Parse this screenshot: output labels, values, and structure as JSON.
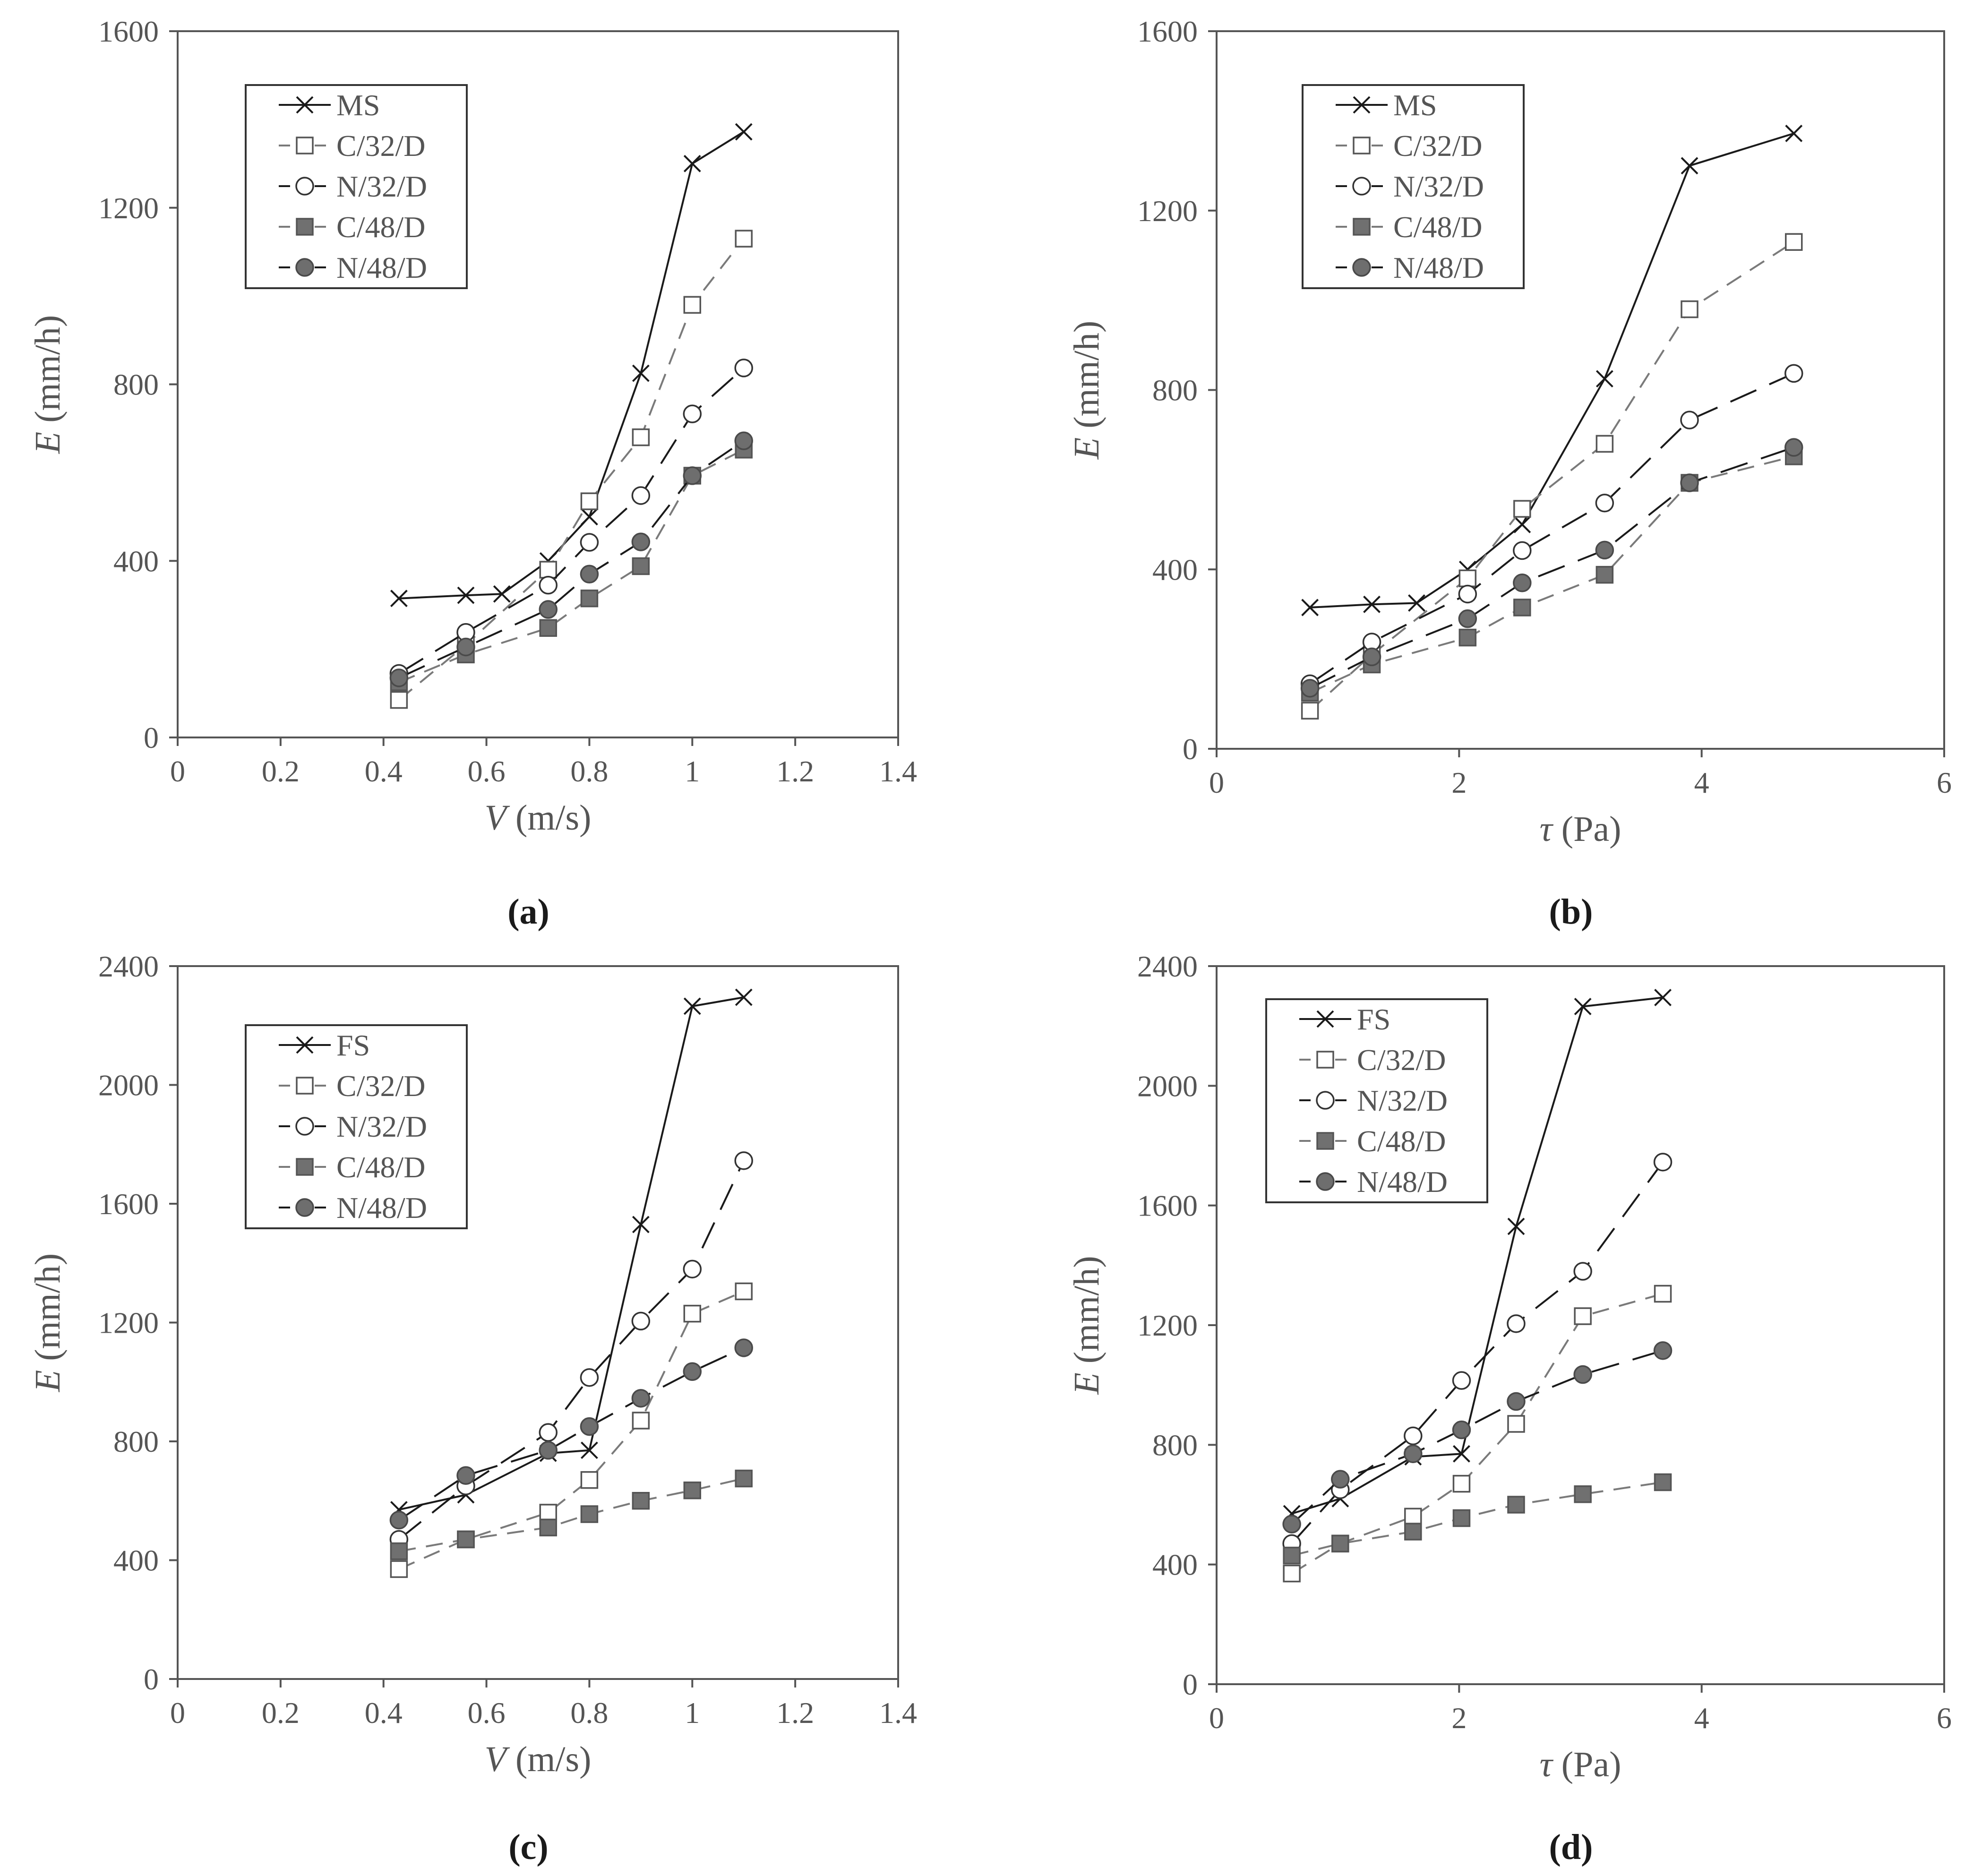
{
  "figure": {
    "colors": {
      "black": "#1a1a1a",
      "gray": "#7a7a7a",
      "axis": "#555555",
      "label": "#555555"
    },
    "panels": [
      "a",
      "b",
      "c",
      "d"
    ]
  },
  "chart_data": [
    {
      "id": "a",
      "type": "line",
      "panel_label": "(a)",
      "xlabel_sym": "V",
      "xlabel_unit": " (m/s)",
      "ylabel_sym": "E",
      "ylabel_unit": " (mm/h)",
      "xlim": [
        0,
        1.4
      ],
      "ylim": [
        0,
        1600
      ],
      "xticks": [
        0,
        0.2,
        0.4,
        0.6,
        0.8,
        1,
        1.2,
        1.4
      ],
      "xtick_labels": [
        "0",
        "0.2",
        "0.4",
        "0.6",
        "0.8",
        "1",
        "1.2",
        "1.4"
      ],
      "yticks": [
        0,
        400,
        800,
        1200,
        1600
      ],
      "ytick_labels": [
        "0",
        "400",
        "800",
        "1200",
        "1600"
      ],
      "legend_position": "top-left",
      "series": [
        {
          "name": "MS",
          "marker": "x",
          "style": "solid",
          "color": "#1a1a1a",
          "x": [
            0.43,
            0.56,
            0.63,
            0.72,
            0.8,
            0.9,
            1.0,
            1.1
          ],
          "y": [
            315,
            322,
            325,
            400,
            500,
            825,
            1300,
            1372
          ]
        },
        {
          "name": "C/32/D",
          "marker": "square-open",
          "style": "dashed",
          "color": "#7a7a7a",
          "x": [
            0.43,
            0.56,
            0.72,
            0.8,
            0.9,
            1.0,
            1.1
          ],
          "y": [
            85,
            210,
            380,
            535,
            680,
            980,
            1130
          ]
        },
        {
          "name": "N/32/D",
          "marker": "circle-open",
          "style": "longdash",
          "color": "#1a1a1a",
          "x": [
            0.43,
            0.56,
            0.72,
            0.8,
            0.9,
            1.0,
            1.1
          ],
          "y": [
            145,
            238,
            345,
            442,
            548,
            733,
            837
          ]
        },
        {
          "name": "C/48/D",
          "marker": "square-filled",
          "style": "dashed",
          "color": "#7a7a7a",
          "x": [
            0.43,
            0.56,
            0.72,
            0.8,
            0.9,
            1.0,
            1.1
          ],
          "y": [
            125,
            188,
            248,
            315,
            388,
            593,
            652
          ]
        },
        {
          "name": "N/48/D",
          "marker": "circle-filled",
          "style": "longdash",
          "color": "#1a1a1a",
          "x": [
            0.43,
            0.56,
            0.72,
            0.8,
            0.9,
            1.0,
            1.1
          ],
          "y": [
            135,
            205,
            290,
            370,
            443,
            593,
            672
          ]
        }
      ]
    },
    {
      "id": "b",
      "type": "line",
      "panel_label": "(b)",
      "xlabel_sym": "τ",
      "xlabel_unit": " (Pa)",
      "ylabel_sym": "E",
      "ylabel_unit": " (mm/h)",
      "xlim": [
        0,
        6
      ],
      "ylim": [
        0,
        1600
      ],
      "xticks": [
        0,
        2,
        4,
        6
      ],
      "xtick_labels": [
        "0",
        "2",
        "4",
        "6"
      ],
      "yticks": [
        0,
        400,
        800,
        1200,
        1600
      ],
      "ytick_labels": [
        "0",
        "400",
        "800",
        "1200",
        "1600"
      ],
      "legend_position": "top-left",
      "series": [
        {
          "name": "MS",
          "marker": "x",
          "style": "solid",
          "color": "#1a1a1a",
          "x": [
            0.77,
            1.28,
            1.65,
            2.07,
            2.52,
            3.2,
            3.9,
            4.76
          ],
          "y": [
            315,
            322,
            325,
            400,
            500,
            825,
            1300,
            1372
          ]
        },
        {
          "name": "C/32/D",
          "marker": "square-open",
          "style": "dashed",
          "color": "#7a7a7a",
          "x": [
            0.77,
            1.28,
            2.07,
            2.52,
            3.2,
            3.9,
            4.76
          ],
          "y": [
            85,
            210,
            380,
            535,
            680,
            980,
            1130
          ]
        },
        {
          "name": "N/32/D",
          "marker": "circle-open",
          "style": "longdash",
          "color": "#1a1a1a",
          "x": [
            0.77,
            1.28,
            2.07,
            2.52,
            3.2,
            3.9,
            4.76
          ],
          "y": [
            145,
            238,
            345,
            442,
            548,
            733,
            837
          ]
        },
        {
          "name": "C/48/D",
          "marker": "square-filled",
          "style": "dashed",
          "color": "#7a7a7a",
          "x": [
            0.77,
            1.28,
            2.07,
            2.52,
            3.2,
            3.9,
            4.76
          ],
          "y": [
            125,
            188,
            248,
            315,
            388,
            593,
            652
          ]
        },
        {
          "name": "N/48/D",
          "marker": "circle-filled",
          "style": "longdash",
          "color": "#1a1a1a",
          "x": [
            0.77,
            1.28,
            2.07,
            2.52,
            3.2,
            3.9,
            4.76
          ],
          "y": [
            135,
            205,
            290,
            370,
            443,
            593,
            672
          ]
        }
      ]
    },
    {
      "id": "c",
      "type": "line",
      "panel_label": "(c)",
      "xlabel_sym": "V",
      "xlabel_unit": " (m/s)",
      "ylabel_sym": "E",
      "ylabel_unit": " (mm/h)",
      "xlim": [
        0,
        1.4
      ],
      "ylim": [
        0,
        2400
      ],
      "xticks": [
        0,
        0.2,
        0.4,
        0.6,
        0.8,
        1,
        1.2,
        1.4
      ],
      "xtick_labels": [
        "0",
        "0.2",
        "0.4",
        "0.6",
        "0.8",
        "1",
        "1.2",
        "1.4"
      ],
      "yticks": [
        0,
        400,
        800,
        1200,
        1600,
        2000,
        2400
      ],
      "ytick_labels": [
        "0",
        "400",
        "800",
        "1200",
        "1600",
        "2000",
        "2400"
      ],
      "legend_position": "top-left",
      "series": [
        {
          "name": "FS",
          "marker": "x",
          "style": "solid",
          "color": "#1a1a1a",
          "x": [
            0.43,
            0.56,
            0.72,
            0.8,
            0.9,
            1.0,
            1.1
          ],
          "y": [
            570,
            620,
            760,
            770,
            1530,
            2265,
            2295
          ]
        },
        {
          "name": "C/32/D",
          "marker": "square-open",
          "style": "dashed",
          "color": "#7a7a7a",
          "x": [
            0.43,
            0.56,
            0.72,
            0.8,
            0.9,
            1.0,
            1.1
          ],
          "y": [
            370,
            470,
            560,
            670,
            870,
            1230,
            1305
          ]
        },
        {
          "name": "N/32/D",
          "marker": "circle-open",
          "style": "longdash",
          "color": "#1a1a1a",
          "x": [
            0.43,
            0.56,
            0.72,
            0.8,
            0.9,
            1.0,
            1.1
          ],
          "y": [
            470,
            650,
            830,
            1015,
            1205,
            1380,
            1745
          ]
        },
        {
          "name": "C/48/D",
          "marker": "square-filled",
          "style": "dashed",
          "color": "#7a7a7a",
          "x": [
            0.43,
            0.56,
            0.72,
            0.8,
            0.9,
            1.0,
            1.1
          ],
          "y": [
            430,
            470,
            510,
            555,
            600,
            635,
            675
          ]
        },
        {
          "name": "N/48/D",
          "marker": "circle-filled",
          "style": "longdash",
          "color": "#1a1a1a",
          "x": [
            0.43,
            0.56,
            0.72,
            0.8,
            0.9,
            1.0,
            1.1
          ],
          "y": [
            535,
            685,
            770,
            850,
            945,
            1035,
            1115
          ]
        }
      ]
    },
    {
      "id": "d",
      "type": "line",
      "panel_label": "(d)",
      "xlabel_sym": "τ",
      "xlabel_unit": " (Pa)",
      "ylabel_sym": "E",
      "ylabel_unit": " (mm/h)",
      "xlim": [
        0,
        6
      ],
      "ylim": [
        0,
        2400
      ],
      "xticks": [
        0,
        2,
        4,
        6
      ],
      "xtick_labels": [
        "0",
        "2",
        "4",
        "6"
      ],
      "yticks": [
        0,
        400,
        800,
        1200,
        1600,
        2000,
        2400
      ],
      "ytick_labels": [
        "0",
        "400",
        "800",
        "1200",
        "1600",
        "2000",
        "2400"
      ],
      "legend_position": "top-left",
      "series": [
        {
          "name": "FS",
          "marker": "x",
          "style": "solid",
          "color": "#1a1a1a",
          "x": [
            0.62,
            1.02,
            1.62,
            2.02,
            2.47,
            3.02,
            3.68
          ],
          "y": [
            570,
            620,
            760,
            770,
            1530,
            2265,
            2295
          ]
        },
        {
          "name": "C/32/D",
          "marker": "square-open",
          "style": "dashed",
          "color": "#7a7a7a",
          "x": [
            0.62,
            1.02,
            1.62,
            2.02,
            2.47,
            3.02,
            3.68
          ],
          "y": [
            370,
            470,
            560,
            670,
            870,
            1230,
            1305
          ]
        },
        {
          "name": "N/32/D",
          "marker": "circle-open",
          "style": "longdash",
          "color": "#1a1a1a",
          "x": [
            0.62,
            1.02,
            1.62,
            2.02,
            2.47,
            3.02,
            3.68
          ],
          "y": [
            470,
            650,
            830,
            1015,
            1205,
            1380,
            1745
          ]
        },
        {
          "name": "C/48/D",
          "marker": "square-filled",
          "style": "dashed",
          "color": "#7a7a7a",
          "x": [
            0.62,
            1.02,
            1.62,
            2.02,
            2.47,
            3.02,
            3.68
          ],
          "y": [
            430,
            470,
            510,
            555,
            600,
            635,
            675
          ]
        },
        {
          "name": "N/48/D",
          "marker": "circle-filled",
          "style": "longdash",
          "color": "#1a1a1a",
          "x": [
            0.62,
            1.02,
            1.62,
            2.02,
            2.47,
            3.02,
            3.68
          ],
          "y": [
            535,
            685,
            770,
            850,
            945,
            1035,
            1115
          ]
        }
      ]
    }
  ]
}
